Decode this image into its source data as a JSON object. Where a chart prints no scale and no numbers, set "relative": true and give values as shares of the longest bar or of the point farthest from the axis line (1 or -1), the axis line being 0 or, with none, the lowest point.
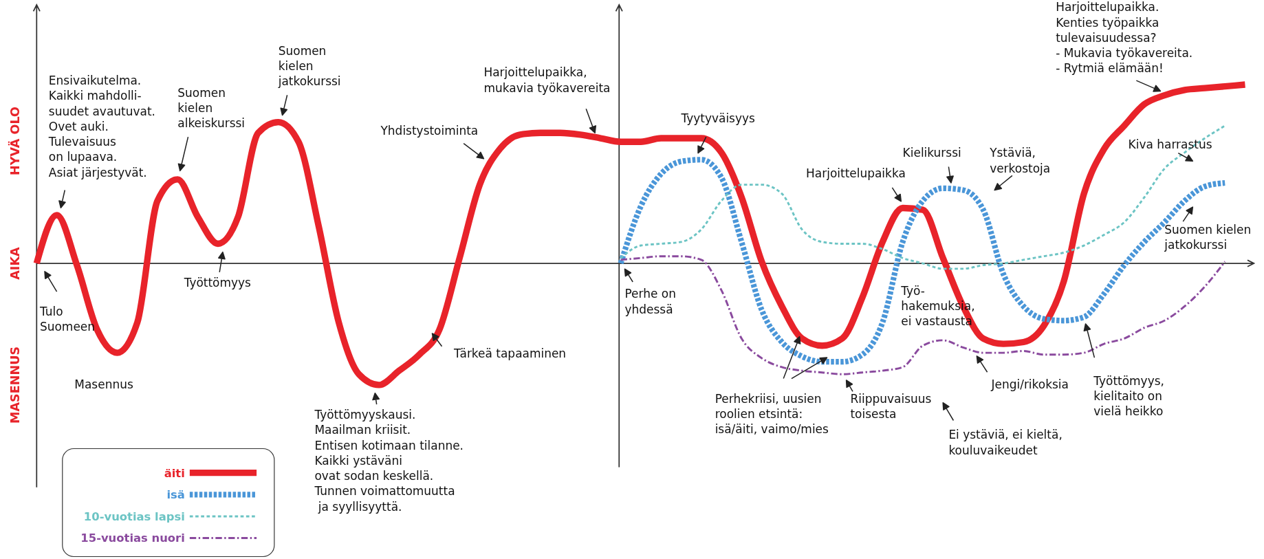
{
  "chart_data": {
    "type": "line",
    "relative": true,
    "legend": "bottom left",
    "categories": [
      null,
      null,
      null,
      null,
      null,
      null,
      null,
      null,
      null,
      null,
      null,
      null,
      null,
      null,
      null,
      null,
      null,
      null,
      null,
      null,
      null,
      null,
      null,
      null,
      null,
      null,
      null,
      null,
      null,
      null,
      null,
      null,
      null,
      null,
      null,
      null,
      null,
      null,
      null,
      null,
      null,
      null,
      null,
      null,
      null,
      null,
      null,
      null,
      null,
      null,
      null,
      null,
      null,
      null,
      null,
      null,
      null,
      null,
      null,
      null,
      null
    ],
    "series": [
      {
        "name": "äiti",
        "color": "#e8232a",
        "line_style": "solid",
        "values": [
          0,
          0.27,
          -0.01,
          -0.37,
          -0.5,
          -0.33,
          0.35,
          0.47,
          0.26,
          0.11,
          0.26,
          0.73,
          0.79,
          0.68,
          0.21,
          -0.33,
          -0.62,
          -0.68,
          -0.6,
          -0.51,
          -0.37,
          0.03,
          0.44,
          0.64,
          0.72,
          0.73,
          0.73,
          0.72,
          0.7,
          0.68,
          0.68,
          0.7,
          0.7,
          0.7,
          0.62,
          0.37,
          0.01,
          -0.24,
          -0.42,
          -0.46,
          -0.42,
          -0.19,
          0.12,
          0.31,
          0.3,
          0.03,
          -0.24,
          -0.42,
          -0.45,
          -0.44,
          -0.35,
          -0.1,
          0.39,
          0.64,
          0.77,
          0.89,
          0.94,
          0.97,
          0.98,
          0.99,
          1
        ]
      },
      {
        "name": "isä",
        "color": "#4a96d8",
        "line_style": "dashed",
        "values": [
          null,
          null,
          null,
          null,
          null,
          null,
          null,
          null,
          null,
          null,
          null,
          null,
          null,
          null,
          null,
          null,
          null,
          null,
          null,
          null,
          null,
          null,
          null,
          null,
          null,
          null,
          null,
          null,
          null,
          0,
          0.32,
          0.5,
          0.57,
          0.58,
          0.48,
          0.12,
          -0.26,
          -0.44,
          -0.52,
          -0.55,
          -0.55,
          -0.51,
          -0.33,
          0.12,
          0.35,
          0.42,
          0.41,
          0.3,
          -0.06,
          -0.24,
          -0.31,
          -0.32,
          -0.3,
          -0.17,
          -0.01,
          0.12,
          0.23,
          0.35,
          0.43,
          0.45,
          null
        ]
      },
      {
        "name": "10-vuotias lapsi",
        "color": "#6cc4c4",
        "line_style": "dotted",
        "values": [
          null,
          null,
          null,
          null,
          null,
          null,
          null,
          null,
          null,
          null,
          null,
          null,
          null,
          null,
          null,
          null,
          null,
          null,
          null,
          null,
          null,
          null,
          null,
          null,
          null,
          null,
          null,
          null,
          null,
          0.03,
          0.1,
          0.11,
          0.12,
          0.19,
          0.35,
          0.44,
          0.44,
          0.39,
          0.19,
          0.12,
          0.11,
          0.11,
          0.08,
          0.03,
          0,
          -0.03,
          -0.03,
          -0.01,
          0,
          0.02,
          0.04,
          0.06,
          0.1,
          0.16,
          0.23,
          0.37,
          0.53,
          0.62,
          0.7,
          0.77,
          null
        ]
      },
      {
        "name": "15-vuotias nuori",
        "color": "#8a4a9e",
        "line_style": "dashed",
        "values": [
          null,
          null,
          null,
          null,
          null,
          null,
          null,
          null,
          null,
          null,
          null,
          null,
          null,
          null,
          null,
          null,
          null,
          null,
          null,
          null,
          null,
          null,
          null,
          null,
          null,
          null,
          null,
          null,
          null,
          0.02,
          0.03,
          0.04,
          0.04,
          0.02,
          -0.15,
          -0.42,
          -0.53,
          -0.58,
          -0.6,
          -0.61,
          -0.62,
          -0.61,
          -0.6,
          -0.58,
          -0.46,
          -0.43,
          -0.47,
          -0.5,
          -0.5,
          -0.49,
          -0.51,
          -0.51,
          -0.5,
          -0.45,
          -0.42,
          -0.36,
          -0.32,
          -0.24,
          -0.13,
          0.01,
          null
        ]
      }
    ],
    "annotations": [
      "Tulo\nSuomeen",
      "Ensivaikutelma.\nKaikki mahdolli-\nsuudet avautuvat.\nOvet auki.\nTulevaisuus\non lupaava.\nAsiat järjestyvät.",
      "Masennus",
      "Suomen\nkielen\nalkeiskurssi",
      "Työttömyys",
      "Suomen\nkielen\njatkokurssi",
      "Yhdistystoiminta",
      "Harjoittelupaikka,\nmukavia työkavereita",
      "Työttömyyskausi.\nMaailman kriisit.\nEntisen kotimaan tilanne.\nKaikki ystäväni\novat sodan keskellä.\nTunnen voimattomuutta\n ja syyllisyyttä.",
      "Tärkeä tapaaminen",
      "Tyytyväisyys",
      "Perhe on\nyhdessä",
      "Harjoittelupaikka",
      "Kielikurssi",
      "Ystäviä,\nverkostoja",
      "Työ-\nhakemuksia,\nei vastausta",
      "Perhekriisi, uusien\nroolien etsintä:\nisä/äiti, vaimo/mies",
      "Riippuvaisuus\ntoisesta",
      "Jengi/rikoksia",
      "Ei ystäviä, ei kieltä,\nkouluvaikeudet",
      "Työttömyys,\nkielitaito on\nvielä heikko",
      "Suomen kielen\njatkokurssi",
      "Kiva harrastus",
      "Harjoittelupaikka.\nKenties työpaikka\ntulevaisuudessa?\n- Mukavia työkavereita.\n- Rytmiä elämään!",
      "HYVÄ OLO",
      "AIKA",
      "MASENNUS"
    ]
  }
}
